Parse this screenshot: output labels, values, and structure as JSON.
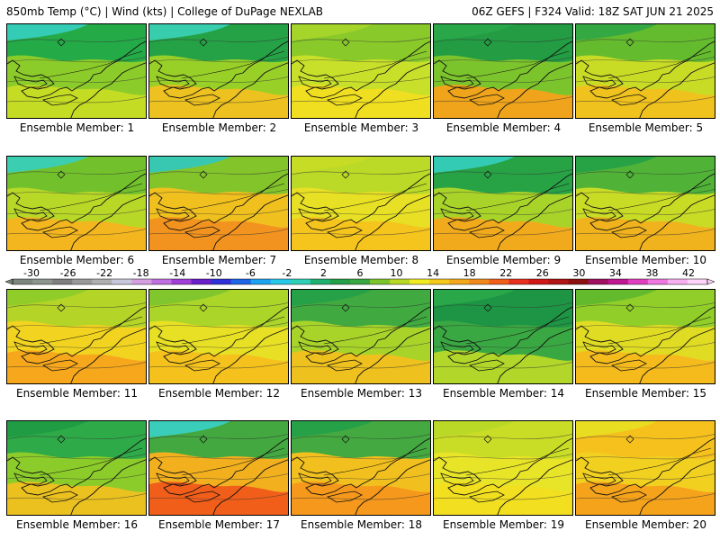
{
  "header": {
    "left": "850mb Temp (°C) | Wind (kts) | College of DuPage NEXLAB",
    "right": "06Z GEFS | F324 Valid: 18Z SAT JUN 21 2025"
  },
  "members": [
    {
      "label": "Ensemble Member: 1",
      "bg": "#8ccc2a",
      "warm": "#c8dc24",
      "cool": "#20a84a",
      "cold": "#36cfc0"
    },
    {
      "label": "Ensemble Member: 2",
      "bg": "#98d028",
      "warm": "#f0c020",
      "cool": "#1f9f48",
      "cold": "#3ad1b8"
    },
    {
      "label": "Ensemble Member: 3",
      "bg": "#c8e02a",
      "warm": "#f2de20",
      "cool": "#86c72a",
      "cold": "#a9d52a"
    },
    {
      "label": "Ensemble Member: 4",
      "bg": "#7cc42c",
      "warm": "#f5a21a",
      "cool": "#1f9a44",
      "cold": "#2aa84a"
    },
    {
      "label": "Ensemble Member: 5",
      "bg": "#c8dc26",
      "warm": "#f2c01e",
      "cool": "#5fb82e",
      "cold": "#2ea646"
    },
    {
      "label": "Ensemble Member: 6",
      "bg": "#b8d828",
      "warm": "#f5b41e",
      "cool": "#6ec02c",
      "cold": "#36cfc0"
    },
    {
      "label": "Ensemble Member: 7",
      "bg": "#f0c01e",
      "warm": "#f29020",
      "cool": "#7cc42c",
      "cold": "#30c8c0"
    },
    {
      "label": "Ensemble Member: 8",
      "bg": "#e8e024",
      "warm": "#f5c21e",
      "cool": "#b8d828",
      "cold": "#c8dc26"
    },
    {
      "label": "Ensemble Member: 9",
      "bg": "#a8d42a",
      "warm": "#f5a81c",
      "cool": "#20a048",
      "cold": "#36cfc0"
    },
    {
      "label": "Ensemble Member: 10",
      "bg": "#c8dc26",
      "warm": "#f2b01e",
      "cool": "#4ab038",
      "cold": "#22a046"
    },
    {
      "label": "Ensemble Member: 11",
      "bg": "#f2d420",
      "warm": "#f5a41c",
      "cool": "#b0d428",
      "cold": "#8ccc2a"
    },
    {
      "label": "Ensemble Member: 12",
      "bg": "#e8e024",
      "warm": "#f5c01e",
      "cool": "#a8d42a",
      "cold": "#7cc42c"
    },
    {
      "label": "Ensemble Member: 13",
      "bg": "#a8d42a",
      "warm": "#f2c01e",
      "cool": "#3aa842",
      "cold": "#24a048"
    },
    {
      "label": "Ensemble Member: 14",
      "bg": "#3aa842",
      "warm": "#b8d828",
      "cool": "#1c9444",
      "cold": "#2aa84a"
    },
    {
      "label": "Ensemble Member: 15",
      "bg": "#e0dc24",
      "warm": "#f5b81e",
      "cool": "#8ccc2a",
      "cold": "#5fb82e"
    },
    {
      "label": "Ensemble Member: 16",
      "bg": "#8ccc2a",
      "warm": "#f0c020",
      "cool": "#2aa84a",
      "cold": "#1f9a44"
    },
    {
      "label": "Ensemble Member: 17",
      "bg": "#f2b01e",
      "warm": "#f05a1a",
      "cool": "#3aa842",
      "cold": "#3ad1c8"
    },
    {
      "label": "Ensemble Member: 18",
      "bg": "#f2c01e",
      "warm": "#f5961c",
      "cool": "#3aa842",
      "cold": "#24a048"
    },
    {
      "label": "Ensemble Member: 19",
      "bg": "#e8e428",
      "warm": "#f2de20",
      "cool": "#c8dc26",
      "cold": "#b8d828"
    },
    {
      "label": "Ensemble Member: 20",
      "bg": "#f2d020",
      "warm": "#f5a01c",
      "cool": "#f5c01e",
      "cold": "#e8e024"
    }
  ],
  "colorbar": {
    "ticks": [
      "-30",
      "-26",
      "-22",
      "-18",
      "-14",
      "-10",
      "-6",
      "-2",
      "2",
      "6",
      "10",
      "14",
      "18",
      "22",
      "26",
      "30",
      "34",
      "38",
      "42"
    ],
    "colors": [
      "#7d857d",
      "#8d958d",
      "#7f7f7f",
      "#9a9a9a",
      "#b0b0b0",
      "#c8c8dc",
      "#d6a0e0",
      "#c070e0",
      "#a040d8",
      "#6a20c8",
      "#3030d8",
      "#1f66e6",
      "#1ea3f0",
      "#28c8e8",
      "#30d0b8",
      "#20b070",
      "#24a048",
      "#3aa842",
      "#7cc42c",
      "#b8d828",
      "#f0ec24",
      "#f5c81e",
      "#f5a81c",
      "#f08a1c",
      "#f0601a",
      "#e83020",
      "#d01818",
      "#b01414",
      "#8c1010",
      "#a01060",
      "#c01890",
      "#e040c0",
      "#f078e0",
      "#f8b0f0",
      "#fcd4f8"
    ]
  }
}
